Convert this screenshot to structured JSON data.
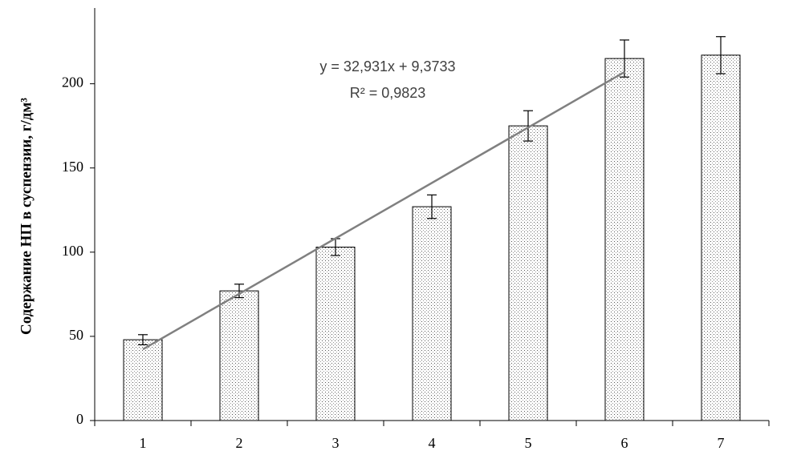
{
  "chart_data": {
    "type": "bar",
    "y_label": "Содержание НП в суспензии, г/дм³",
    "categories": [
      "1",
      "2",
      "3",
      "4",
      "5",
      "6",
      "7"
    ],
    "values": [
      48,
      77,
      103,
      127,
      175,
      215,
      217
    ],
    "errors": [
      3,
      4,
      5,
      7,
      9,
      11,
      11
    ],
    "color": "#ffffff",
    "ylim": [
      0,
      245
    ],
    "yticks": [
      0,
      50,
      100,
      150,
      200
    ],
    "grid": false,
    "trendline": {
      "slope": 32.931,
      "intercept": 9.3733,
      "from": 1,
      "to": 6,
      "color": "#808080",
      "equation": "y = 32,931x + 9,3733",
      "r2": "R² = 0,9823"
    }
  }
}
